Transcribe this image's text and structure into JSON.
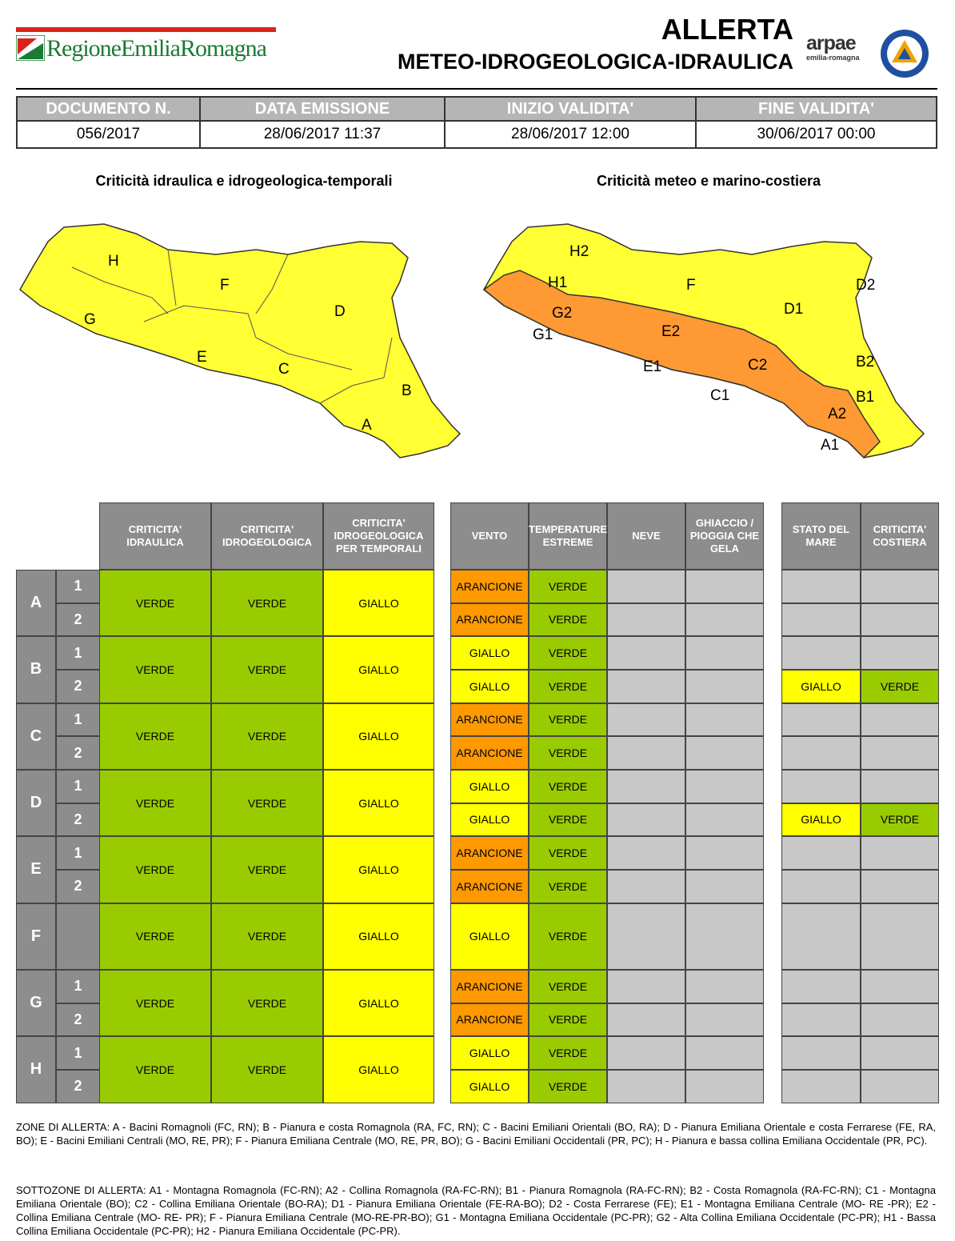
{
  "header": {
    "logo_text": "RegioneEmiliaRomagna",
    "title_line1": "ALLERTA",
    "title_line2": "METEO-IDROGEOLOGICA-IDRAULICA",
    "arpae_name": "arpae",
    "arpae_sub": "emilia-romagna",
    "badge_text": "PROTEZIONE CIVILE"
  },
  "document_info": {
    "headers": [
      "DOCUMENTO N.",
      "DATA EMISSIONE",
      "INIZIO VALIDITA'",
      "FINE VALIDITA'"
    ],
    "values": [
      "056/2017",
      "28/06/2017 11:37",
      "28/06/2017 12:00",
      "30/06/2017 00:00"
    ]
  },
  "maps": {
    "left": {
      "title": "Criticità idraulica e idrogeologica-temporali",
      "labels": [
        "H",
        "F",
        "G",
        "D",
        "E",
        "C",
        "B",
        "A"
      ]
    },
    "right": {
      "title": "Criticità meteo e marino-costiera",
      "labels": [
        "H2",
        "H1",
        "F",
        "D2",
        "G2",
        "D1",
        "G1",
        "E2",
        "B2",
        "C2",
        "E1",
        "B1",
        "C1",
        "A2",
        "A1"
      ]
    }
  },
  "grid": {
    "col_headers_a": [
      "CRITICITA' IDRAULICA",
      "CRITICITA' IDROGEOLOGICA",
      "CRITICITA' IDROGEOLOGICA PER TEMPORALI"
    ],
    "col_headers_b": [
      "VENTO",
      "TEMPERATURE ESTREME",
      "NEVE",
      "GHIACCIO / PIOGGIA CHE GELA"
    ],
    "col_headers_c": [
      "STATO DEL MARE",
      "CRITICITA' COSTIERA"
    ],
    "zones": [
      {
        "zone": "A",
        "subs": [
          "1",
          "2"
        ],
        "idraulica": "VERDE",
        "idrogeologica": "VERDE",
        "temporali": "GIALLO",
        "vento": [
          "ARANCIONE",
          "ARANCIONE"
        ],
        "temperature": [
          "VERDE",
          "VERDE"
        ],
        "mare": [
          "",
          ""
        ],
        "costiera": [
          "",
          ""
        ]
      },
      {
        "zone": "B",
        "subs": [
          "1",
          "2"
        ],
        "idraulica": "VERDE",
        "idrogeologica": "VERDE",
        "temporali": "GIALLO",
        "vento": [
          "GIALLO",
          "GIALLO"
        ],
        "temperature": [
          "VERDE",
          "VERDE"
        ],
        "mare": [
          "",
          "GIALLO"
        ],
        "costiera": [
          "",
          "VERDE"
        ]
      },
      {
        "zone": "C",
        "subs": [
          "1",
          "2"
        ],
        "idraulica": "VERDE",
        "idrogeologica": "VERDE",
        "temporali": "GIALLO",
        "vento": [
          "ARANCIONE",
          "ARANCIONE"
        ],
        "temperature": [
          "VERDE",
          "VERDE"
        ],
        "mare": [
          "",
          ""
        ],
        "costiera": [
          "",
          ""
        ]
      },
      {
        "zone": "D",
        "subs": [
          "1",
          "2"
        ],
        "idraulica": "VERDE",
        "idrogeologica": "VERDE",
        "temporali": "GIALLO",
        "vento": [
          "GIALLO",
          "GIALLO"
        ],
        "temperature": [
          "VERDE",
          "VERDE"
        ],
        "mare": [
          "",
          "GIALLO"
        ],
        "costiera": [
          "",
          "VERDE"
        ]
      },
      {
        "zone": "E",
        "subs": [
          "1",
          "2"
        ],
        "idraulica": "VERDE",
        "idrogeologica": "VERDE",
        "temporali": "GIALLO",
        "vento": [
          "ARANCIONE",
          "ARANCIONE"
        ],
        "temperature": [
          "VERDE",
          "VERDE"
        ],
        "mare": [
          "",
          ""
        ],
        "costiera": [
          "",
          ""
        ]
      },
      {
        "zone": "F",
        "subs": [
          ""
        ],
        "idraulica": "VERDE",
        "idrogeologica": "VERDE",
        "temporali": "GIALLO",
        "vento": [
          "GIALLO"
        ],
        "temperature": [
          "VERDE"
        ],
        "mare": [
          ""
        ],
        "costiera": [
          ""
        ]
      },
      {
        "zone": "G",
        "subs": [
          "1",
          "2"
        ],
        "idraulica": "VERDE",
        "idrogeologica": "VERDE",
        "temporali": "GIALLO",
        "vento": [
          "ARANCIONE",
          "ARANCIONE"
        ],
        "temperature": [
          "VERDE",
          "VERDE"
        ],
        "mare": [
          "",
          ""
        ],
        "costiera": [
          "",
          ""
        ]
      },
      {
        "zone": "H",
        "subs": [
          "1",
          "2"
        ],
        "idraulica": "VERDE",
        "idrogeologica": "VERDE",
        "temporali": "GIALLO",
        "vento": [
          "GIALLO",
          "GIALLO"
        ],
        "temperature": [
          "VERDE",
          "VERDE"
        ],
        "mare": [
          "",
          ""
        ],
        "costiera": [
          "",
          ""
        ]
      }
    ]
  },
  "colors": {
    "verde": "#99cc00",
    "giallo": "#ffff00",
    "arancione": "#ff9900",
    "grey": "#c8c8c8",
    "header": "#8d8d8d"
  },
  "notes": {
    "zone": "ZONE DI ALLERTA: A - Bacini Romagnoli (FC, RN); B - Pianura e costa Romagnola (RA, FC, RN); C - Bacini Emiliani Orientali (BO, RA); D - Pianura Emiliana Orientale e costa Ferrarese (FE, RA, BO); E - Bacini Emiliani Centrali (MO, RE, PR); F - Pianura Emiliana Centrale (MO, RE, PR, BO); G - Bacini Emiliani Occidentali (PR, PC); H - Pianura e bassa collina Emiliana Occidentale (PR, PC).",
    "sottozone": "SOTTOZONE DI ALLERTA: A1 - Montagna Romagnola (FC-RN); A2 - Collina Romagnola (RA-FC-RN); B1 - Pianura Romagnola (RA-FC-RN); B2 - Costa Romagnola (RA-FC-RN); C1 - Montagna Emiliana Orientale (BO); C2 - Collina Emiliana Orientale (BO-RA); D1 - Pianura Emiliana Orientale (FE-RA-BO); D2 - Costa Ferrarese (FE); E1 - Montagna Emiliana Centrale (MO- RE -PR); E2 - Collina Emiliana Centrale (MO- RE- PR); F - Pianura Emiliana Centrale (MO-RE-PR-BO); G1 - Montagna Emiliana Occidentale (PC-PR); G2 - Alta Collina Emiliana Occidentale (PC-PR); H1 - Bassa Collina Emiliana Occidentale (PC-PR); H2 - Pianura Emiliana Occidentale (PC-PR)."
  }
}
